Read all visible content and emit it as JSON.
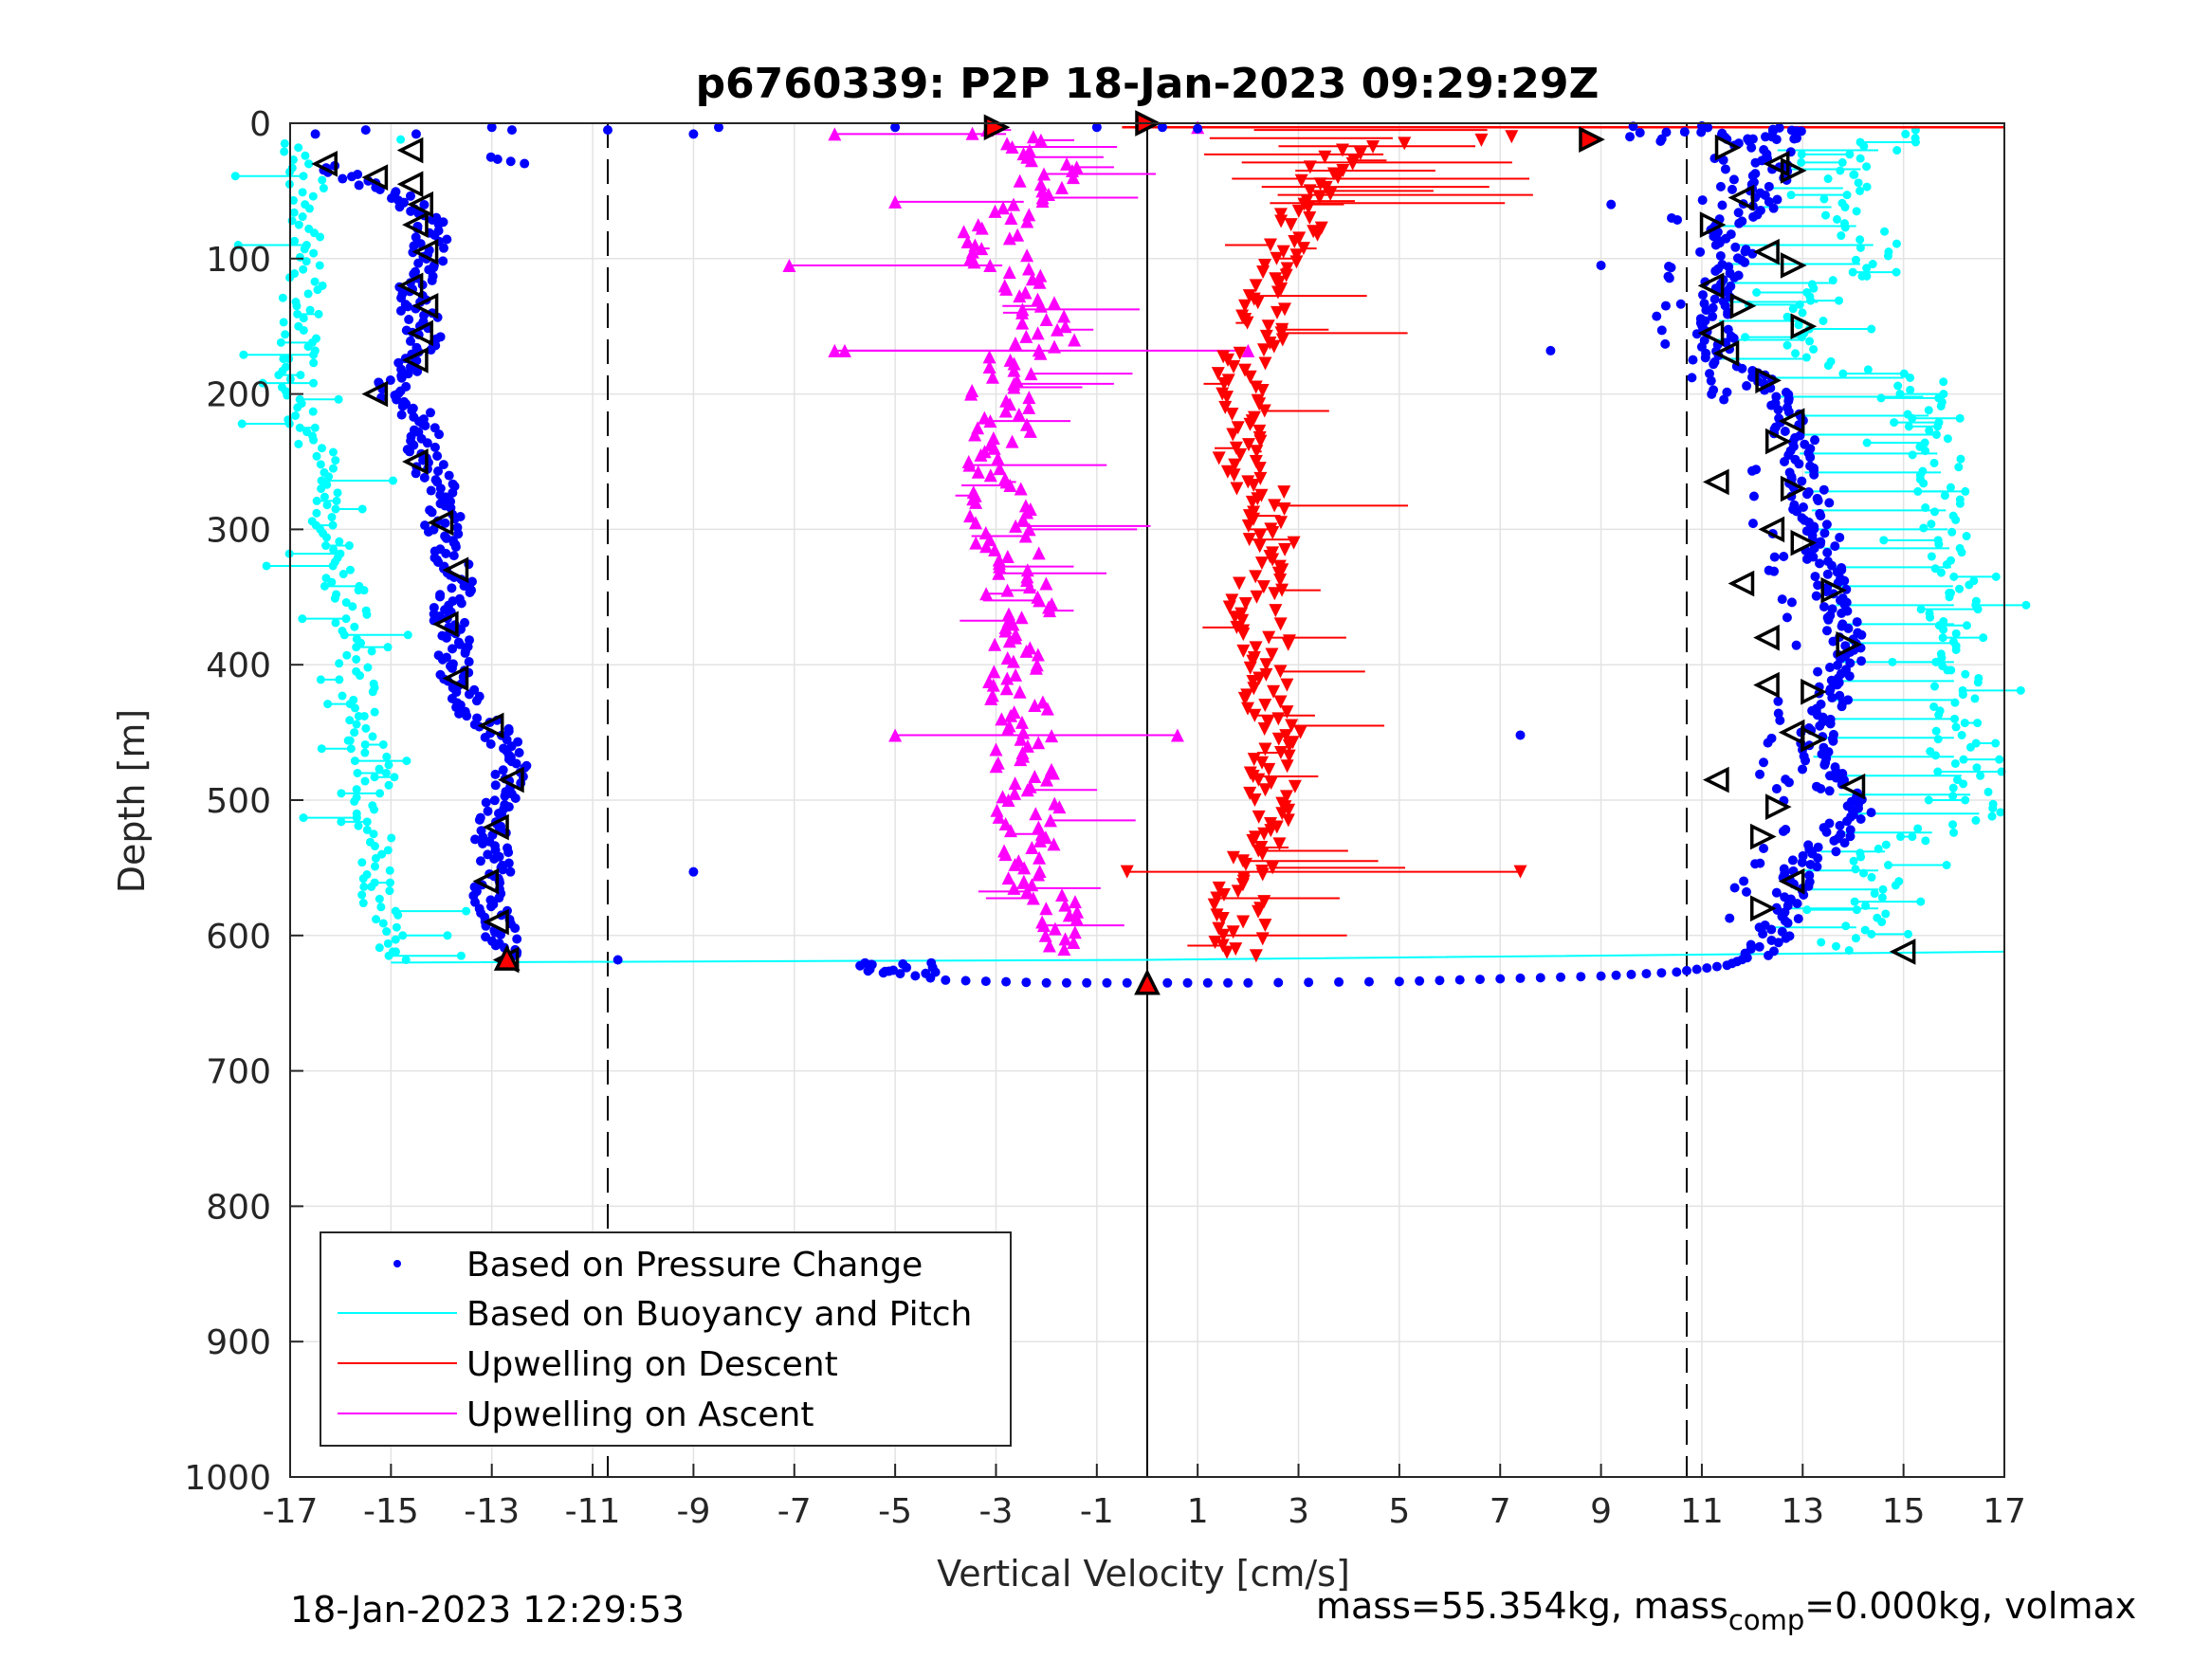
{
  "chart_data": {
    "type": "scatter",
    "title": "p6760339: P2P 18-Jan-2023 09:29:29Z",
    "xlabel": "Vertical Velocity [cm/s]",
    "ylabel": "Depth [m]",
    "xlim": [
      -17,
      17
    ],
    "ylim": [
      0,
      1000
    ],
    "y_reversed": true,
    "grid": true,
    "legend_position": "bottom-left",
    "x_ticks": [
      "-17",
      "-15",
      "-13",
      "-11",
      "-9",
      "-7",
      "-5",
      "-3",
      "-1",
      "1",
      "3",
      "5",
      "7",
      "9",
      "11",
      "13",
      "15",
      "17"
    ],
    "y_ticks": [
      "0",
      "100",
      "200",
      "300",
      "400",
      "500",
      "600",
      "700",
      "800",
      "900",
      "1000"
    ],
    "vertical_reference_lines": [
      {
        "x": -10.7,
        "style": "dashed"
      },
      {
        "x": 0,
        "style": "solid"
      },
      {
        "x": 10.7,
        "style": "dashed"
      }
    ],
    "series": [
      {
        "name": "Based on Pressure Change",
        "color": "#0000ff",
        "marker": "dot",
        "descent_profile": [
          [
            -16.2,
            30
          ],
          [
            -15.5,
            45
          ],
          [
            -14.8,
            55
          ],
          [
            -14.3,
            70
          ],
          [
            -14.2,
            90
          ],
          [
            -14.4,
            110
          ],
          [
            -14.7,
            125
          ],
          [
            -14.4,
            145
          ],
          [
            -14.3,
            165
          ],
          [
            -14.8,
            185
          ],
          [
            -15.1,
            200
          ],
          [
            -14.3,
            220
          ],
          [
            -14.4,
            245
          ],
          [
            -14.1,
            265
          ],
          [
            -13.9,
            285
          ],
          [
            -14.0,
            300
          ],
          [
            -13.8,
            320
          ],
          [
            -13.7,
            340
          ],
          [
            -13.9,
            365
          ],
          [
            -13.7,
            385
          ],
          [
            -13.8,
            405
          ],
          [
            -13.5,
            430
          ],
          [
            -12.9,
            450
          ],
          [
            -12.6,
            470
          ],
          [
            -12.7,
            490
          ],
          [
            -12.9,
            510
          ],
          [
            -13.0,
            530
          ],
          [
            -12.9,
            550
          ],
          [
            -13.1,
            570
          ],
          [
            -12.9,
            590
          ],
          [
            -12.8,
            605
          ],
          [
            -12.7,
            617
          ]
        ],
        "ascent_profile": [
          [
            12.5,
            20
          ],
          [
            12.4,
            40
          ],
          [
            12.2,
            60
          ],
          [
            11.3,
            75
          ],
          [
            11.8,
            95
          ],
          [
            11.3,
            115
          ],
          [
            11.4,
            135
          ],
          [
            11.3,
            155
          ],
          [
            11.2,
            175
          ],
          [
            12.2,
            190
          ],
          [
            12.6,
            210
          ],
          [
            12.8,
            230
          ],
          [
            13.0,
            250
          ],
          [
            13.1,
            270
          ],
          [
            13.2,
            290
          ],
          [
            13.4,
            310
          ],
          [
            13.5,
            330
          ],
          [
            13.6,
            350
          ],
          [
            13.8,
            370
          ],
          [
            13.9,
            390
          ],
          [
            13.6,
            410
          ],
          [
            13.5,
            430
          ],
          [
            13.3,
            450
          ],
          [
            13.2,
            470
          ],
          [
            13.6,
            490
          ],
          [
            14.0,
            510
          ],
          [
            13.6,
            530
          ],
          [
            13.0,
            550
          ],
          [
            12.8,
            570
          ],
          [
            12.5,
            590
          ],
          [
            12.3,
            605
          ],
          [
            12.0,
            615
          ]
        ],
        "bottom_transition": [
          [
            -5.5,
            625
          ],
          [
            -4.0,
            633
          ],
          [
            -2.0,
            635
          ],
          [
            0,
            635
          ],
          [
            2.0,
            635
          ],
          [
            5.0,
            634
          ],
          [
            7.0,
            632
          ],
          [
            9.0,
            630
          ],
          [
            10.5,
            627
          ],
          [
            11.5,
            622
          ],
          [
            12.0,
            615
          ]
        ],
        "surface_points": [
          [
            -16.5,
            8
          ],
          [
            -15.5,
            5
          ],
          [
            -14.5,
            8
          ],
          [
            -13.0,
            3
          ],
          [
            -12.6,
            5
          ],
          [
            -10.7,
            5
          ],
          [
            -9.0,
            8
          ],
          [
            -8.5,
            3
          ],
          [
            -5.0,
            3
          ],
          [
            -3.0,
            3
          ],
          [
            -1.0,
            3
          ],
          [
            0.3,
            3
          ],
          [
            1.0,
            4
          ],
          [
            8.8,
            12
          ],
          [
            11.0,
            2
          ],
          [
            9.2,
            60
          ],
          [
            9.0,
            105
          ],
          [
            8.0,
            168
          ],
          [
            7.4,
            452
          ],
          [
            -9.0,
            553
          ],
          [
            -10.5,
            618
          ]
        ]
      },
      {
        "name": "Based on Buoyancy and Pitch",
        "color": "#00ffff",
        "marker": "circle-line",
        "descent_profile": [
          [
            -16.8,
            15
          ],
          [
            -16.6,
            80
          ],
          [
            -16.8,
            140
          ],
          [
            -16.8,
            180
          ],
          [
            -16.7,
            220
          ],
          [
            -16.4,
            250
          ],
          [
            -16.2,
            290
          ],
          [
            -16.0,
            330
          ],
          [
            -15.8,
            370
          ],
          [
            -15.7,
            410
          ],
          [
            -15.5,
            450
          ],
          [
            -15.4,
            490
          ],
          [
            -15.3,
            530
          ],
          [
            -15.2,
            570
          ],
          [
            -15.0,
            600
          ],
          [
            -14.8,
            618
          ]
        ],
        "ascent_profile": [
          [
            15.5,
            5
          ],
          [
            14.5,
            20
          ],
          [
            14.0,
            40
          ],
          [
            13.5,
            60
          ],
          [
            14.2,
            80
          ],
          [
            14.5,
            95
          ],
          [
            13.5,
            120
          ],
          [
            13.0,
            150
          ],
          [
            13.0,
            175
          ],
          [
            15.3,
            190
          ],
          [
            15.6,
            230
          ],
          [
            15.8,
            270
          ],
          [
            15.9,
            310
          ],
          [
            16.0,
            350
          ],
          [
            16.0,
            390
          ],
          [
            16.0,
            430
          ],
          [
            16.0,
            470
          ],
          [
            16.5,
            510
          ],
          [
            14.5,
            540
          ],
          [
            14.5,
            580
          ],
          [
            13.5,
            612
          ],
          [
            17.0,
            612
          ]
        ],
        "bottom_transition": [
          [
            -15.0,
            620
          ],
          [
            0,
            618
          ],
          [
            17.0,
            612
          ]
        ]
      },
      {
        "name": "Upwelling on Descent",
        "color": "#ff0000",
        "marker": "triangle-down",
        "profile": [
          [
            8.8,
            5
          ],
          [
            4.0,
            20
          ],
          [
            3.5,
            40
          ],
          [
            3.0,
            60
          ],
          [
            3.2,
            80
          ],
          [
            2.5,
            100
          ],
          [
            2.2,
            120
          ],
          [
            2.3,
            140
          ],
          [
            2.2,
            160
          ],
          [
            1.8,
            180
          ],
          [
            1.9,
            200
          ],
          [
            1.9,
            220
          ],
          [
            1.8,
            240
          ],
          [
            2.1,
            260
          ],
          [
            2.3,
            280
          ],
          [
            2.5,
            300
          ],
          [
            2.4,
            320
          ],
          [
            2.3,
            340
          ],
          [
            2.1,
            360
          ],
          [
            2.3,
            380
          ],
          [
            2.5,
            400
          ],
          [
            2.4,
            420
          ],
          [
            2.5,
            440
          ],
          [
            2.6,
            460
          ],
          [
            2.4,
            480
          ],
          [
            2.5,
            500
          ],
          [
            2.3,
            520
          ],
          [
            2.1,
            540
          ],
          [
            1.9,
            560
          ],
          [
            1.8,
            580
          ],
          [
            1.9,
            600
          ],
          [
            1.7,
            615
          ],
          [
            0,
            620
          ]
        ],
        "outliers": [
          [
            -0.4,
            553
          ],
          [
            7.4,
            553
          ],
          [
            17.0,
            3
          ]
        ]
      },
      {
        "name": "Upwelling on Ascent",
        "color": "#ff00ff",
        "marker": "triangle-up",
        "profile": [
          [
            -3.0,
            5
          ],
          [
            -2.0,
            20
          ],
          [
            -2.0,
            40
          ],
          [
            -2.5,
            60
          ],
          [
            -3.0,
            80
          ],
          [
            -3.0,
            100
          ],
          [
            -2.5,
            120
          ],
          [
            -2.0,
            140
          ],
          [
            -2.0,
            160
          ],
          [
            -2.8,
            180
          ],
          [
            -3.0,
            200
          ],
          [
            -2.8,
            220
          ],
          [
            -2.8,
            240
          ],
          [
            -3.0,
            260
          ],
          [
            -3.0,
            280
          ],
          [
            -2.8,
            300
          ],
          [
            -2.7,
            320
          ],
          [
            -2.6,
            340
          ],
          [
            -2.5,
            360
          ],
          [
            -2.5,
            380
          ],
          [
            -2.6,
            400
          ],
          [
            -2.6,
            420
          ],
          [
            -2.6,
            440
          ],
          [
            -2.5,
            460
          ],
          [
            -2.5,
            480
          ],
          [
            -2.4,
            500
          ],
          [
            -2.3,
            520
          ],
          [
            -2.2,
            540
          ],
          [
            -2.1,
            560
          ],
          [
            -2.0,
            580
          ],
          [
            -1.9,
            600
          ],
          [
            -2.0,
            612
          ],
          [
            0,
            615
          ]
        ],
        "outliers": [
          [
            -6.2,
            8
          ],
          [
            1.0,
            3
          ],
          [
            -5.0,
            58
          ],
          [
            -7.1,
            105
          ],
          [
            -6.2,
            168
          ],
          [
            -5.0,
            452
          ],
          [
            0.6,
            452
          ],
          [
            -6.0,
            168
          ],
          [
            2.0,
            168
          ]
        ]
      }
    ],
    "markers": {
      "descent_triangles_left": [
        [
          -16.3,
          30
        ],
        [
          -15.3,
          40
        ],
        [
          -14.6,
          45
        ],
        [
          -14.4,
          60
        ],
        [
          -14.5,
          75
        ],
        [
          -14.3,
          95
        ],
        [
          -14.6,
          120
        ],
        [
          -14.3,
          135
        ],
        [
          -14.4,
          155
        ],
        [
          -14.5,
          175
        ],
        [
          -15.3,
          200
        ],
        [
          -14.5,
          250
        ],
        [
          -14.0,
          295
        ],
        [
          -13.7,
          330
        ],
        [
          -13.9,
          370
        ],
        [
          -13.7,
          410
        ],
        [
          -13.0,
          445
        ],
        [
          -12.6,
          485
        ],
        [
          -12.9,
          520
        ],
        [
          -13.1,
          560
        ],
        [
          -12.9,
          590
        ],
        [
          -12.7,
          618
        ],
        [
          -14.6,
          20
        ]
      ],
      "ascent_triangles": [
        [
          11.5,
          18
        ],
        [
          12.5,
          30
        ],
        [
          12.8,
          35
        ],
        [
          11.8,
          55
        ],
        [
          11.2,
          75
        ],
        [
          12.3,
          95
        ],
        [
          12.8,
          105
        ],
        [
          11.2,
          120
        ],
        [
          11.8,
          135
        ],
        [
          11.2,
          155
        ],
        [
          13.0,
          150
        ],
        [
          11.5,
          170
        ],
        [
          12.3,
          190
        ],
        [
          12.8,
          220
        ],
        [
          12.5,
          235
        ],
        [
          11.3,
          265
        ],
        [
          12.8,
          270
        ],
        [
          12.4,
          300
        ],
        [
          13.0,
          310
        ],
        [
          11.8,
          340
        ],
        [
          13.6,
          345
        ],
        [
          12.3,
          380
        ],
        [
          13.9,
          385
        ],
        [
          12.3,
          415
        ],
        [
          13.2,
          420
        ],
        [
          12.8,
          450
        ],
        [
          13.2,
          455
        ],
        [
          11.3,
          485
        ],
        [
          12.5,
          505
        ],
        [
          14.0,
          490
        ],
        [
          12.2,
          527
        ],
        [
          12.8,
          560
        ],
        [
          12.2,
          580
        ],
        [
          15.0,
          612
        ]
      ],
      "surface_triangles": [
        [
          -3.0,
          3
        ],
        [
          0.0,
          0
        ],
        [
          8.8,
          12
        ]
      ],
      "bottom_triangles": [
        [
          0,
          635
        ],
        [
          -12.7,
          617
        ]
      ]
    }
  },
  "footer": {
    "timestamp": "18-Jan-2023 12:29:53",
    "mass_text_part1": "mass=55.354kg, mass",
    "mass_text_sub": "comp",
    "mass_text_part2": "=0.000kg, volmax"
  },
  "legend": {
    "items": [
      {
        "label": "Based on Pressure Change",
        "color": "#0000ff",
        "kind": "dot"
      },
      {
        "label": "Based on Buoyancy and Pitch",
        "color": "#00ffff",
        "kind": "line"
      },
      {
        "label": "Upwelling on Descent",
        "color": "#ff0000",
        "kind": "line"
      },
      {
        "label": "Upwelling on Ascent",
        "color": "#ff00ff",
        "kind": "line"
      }
    ]
  }
}
